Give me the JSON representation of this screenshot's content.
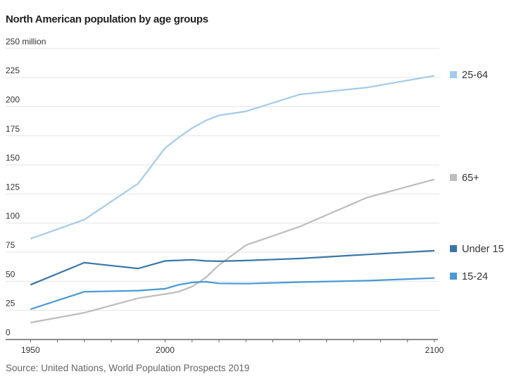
{
  "chart_data": {
    "type": "line",
    "title": "North American population by age groups",
    "source": "Source: United Nations, World Population Prospects 2019",
    "y_unit_label": "250 million",
    "ylim": [
      0,
      250
    ],
    "y_ticks": [
      0,
      25,
      50,
      75,
      100,
      125,
      150,
      175,
      200,
      225,
      250
    ],
    "y_tick_labels": [
      "0",
      "25",
      "50",
      "75",
      "100",
      "125",
      "150",
      "175",
      "200",
      "225",
      "250 million"
    ],
    "xlim": [
      1950,
      2100
    ],
    "x_tick_labels": [
      "1950",
      "2000",
      "2100"
    ],
    "x_minor_tick_step": 10,
    "grid": true,
    "legend_placement": "right, at line ends",
    "x": [
      1950,
      1970,
      1990,
      2000,
      2005,
      2010,
      2015,
      2020,
      2030,
      2050,
      2075,
      2100
    ],
    "series": [
      {
        "name": "25-64",
        "color": "#a3cbeb",
        "values": [
          86.5,
          103,
          134,
          164.5,
          173.5,
          181.5,
          188,
          192.5,
          196,
          210.5,
          216.5,
          226.5
        ]
      },
      {
        "name": "65+",
        "color": "#bdbdbd",
        "values": [
          14.5,
          23,
          35.5,
          39,
          41,
          45.5,
          53,
          64,
          81,
          97,
          122,
          137.5
        ]
      },
      {
        "name": "Under 15",
        "color": "#3a77a9",
        "values": [
          47,
          66,
          61,
          67.5,
          68,
          68.5,
          67.5,
          67.2,
          67.8,
          69.6,
          73,
          76.3
        ]
      },
      {
        "name": "15-24",
        "color": "#4899d6",
        "values": [
          26,
          41,
          42,
          43.6,
          47,
          49,
          49.6,
          48.2,
          48,
          49.3,
          50.5,
          52.8
        ]
      }
    ]
  }
}
